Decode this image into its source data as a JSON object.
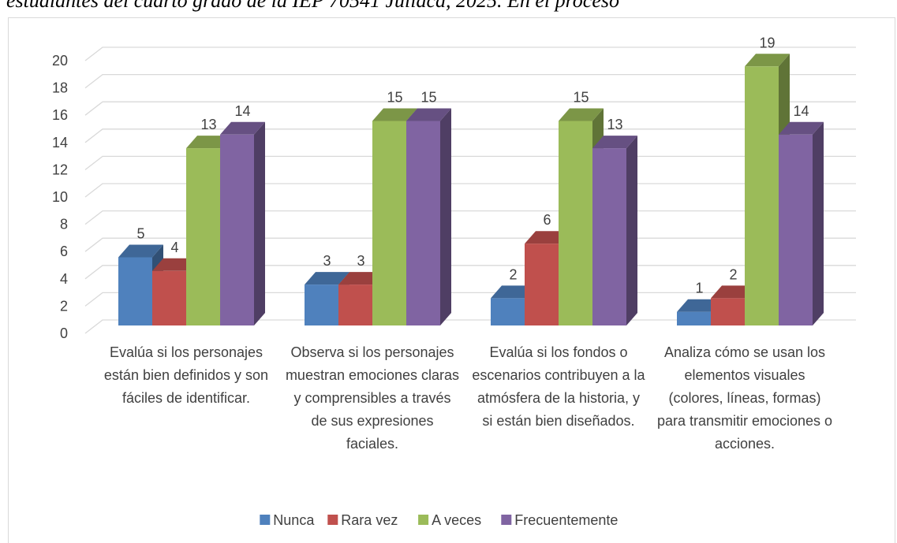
{
  "chart_data": {
    "type": "bar3d",
    "title": "estudiantes del cuarto grado de la IEP 70541 Juliaca, 2025. En el proceso",
    "categories": [
      "Evalúa si los personajes están bien definidos y son fáciles de identificar.",
      "Observa si los personajes muestran emociones claras y comprensibles a través de sus expresiones faciales.",
      "Evalúa si los fondos o escenarios contribuyen a la atmósfera de la historia, y si están bien diseñados.",
      "Analiza cómo se usan los elementos visuales (colores, líneas, formas) para transmitir emociones o acciones."
    ],
    "series": [
      {
        "name": "Nunca",
        "color": "#4f81bd",
        "values": [
          5,
          3,
          2,
          1
        ]
      },
      {
        "name": "Rara vez",
        "color": "#c0504d",
        "values": [
          4,
          3,
          6,
          2
        ]
      },
      {
        "name": "A veces",
        "color": "#9bbb59",
        "values": [
          13,
          15,
          15,
          19
        ]
      },
      {
        "name": "Frecuentemente",
        "color": "#8064a2",
        "values": [
          14,
          15,
          13,
          14
        ]
      }
    ],
    "ylim": [
      0,
      20
    ],
    "yticks": [
      0,
      2,
      4,
      6,
      8,
      10,
      12,
      14,
      16,
      18,
      20
    ],
    "grid": true,
    "legend": "bottom"
  }
}
